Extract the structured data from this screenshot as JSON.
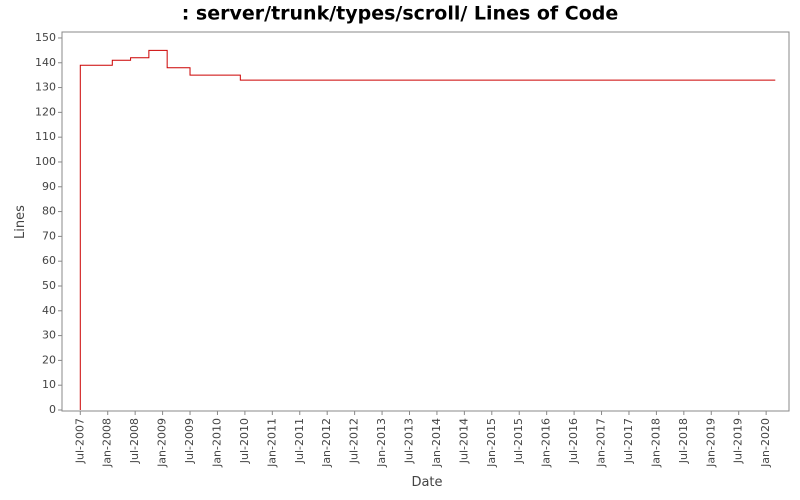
{
  "chart_data": {
    "type": "line",
    "title": ": server/trunk/types/scroll/ Lines of Code",
    "x_label": "Date",
    "y_label": "Lines",
    "step": true,
    "series": [
      {
        "name": "Lines",
        "color": "#cc0000",
        "x": [
          "2007-07",
          "2007-07",
          "2008-02",
          "2008-06",
          "2008-10",
          "2009-02",
          "2009-07",
          "2010-06",
          "2020-03"
        ],
        "values": [
          0,
          139,
          141,
          142,
          145,
          138,
          135,
          133,
          133
        ]
      }
    ],
    "xlim": [
      "2007-03",
      "2020-06"
    ],
    "xticks": [
      {
        "value": "2007-07",
        "label": "Jul-2007"
      },
      {
        "value": "2008-01",
        "label": "Jan-2008"
      },
      {
        "value": "2008-07",
        "label": "Jul-2008"
      },
      {
        "value": "2009-01",
        "label": "Jan-2009"
      },
      {
        "value": "2009-07",
        "label": "Jul-2009"
      },
      {
        "value": "2010-01",
        "label": "Jan-2010"
      },
      {
        "value": "2010-07",
        "label": "Jul-2010"
      },
      {
        "value": "2011-01",
        "label": "Jan-2011"
      },
      {
        "value": "2011-07",
        "label": "Jul-2011"
      },
      {
        "value": "2012-01",
        "label": "Jan-2012"
      },
      {
        "value": "2012-07",
        "label": "Jul-2012"
      },
      {
        "value": "2013-01",
        "label": "Jan-2013"
      },
      {
        "value": "2013-07",
        "label": "Jul-2013"
      },
      {
        "value": "2014-01",
        "label": "Jan-2014"
      },
      {
        "value": "2014-07",
        "label": "Jul-2014"
      },
      {
        "value": "2015-01",
        "label": "Jan-2015"
      },
      {
        "value": "2015-07",
        "label": "Jul-2015"
      },
      {
        "value": "2016-01",
        "label": "Jan-2016"
      },
      {
        "value": "2016-07",
        "label": "Jul-2016"
      },
      {
        "value": "2017-01",
        "label": "Jan-2017"
      },
      {
        "value": "2017-07",
        "label": "Jul-2017"
      },
      {
        "value": "2018-01",
        "label": "Jan-2018"
      },
      {
        "value": "2018-07",
        "label": "Jul-2018"
      },
      {
        "value": "2019-01",
        "label": "Jan-2019"
      },
      {
        "value": "2019-07",
        "label": "Jul-2019"
      },
      {
        "value": "2020-01",
        "label": "Jan-2020"
      }
    ],
    "ylim": [
      0,
      152
    ],
    "yticks": [
      0,
      10,
      20,
      30,
      40,
      50,
      60,
      70,
      80,
      90,
      100,
      110,
      120,
      130,
      140,
      150
    ]
  }
}
